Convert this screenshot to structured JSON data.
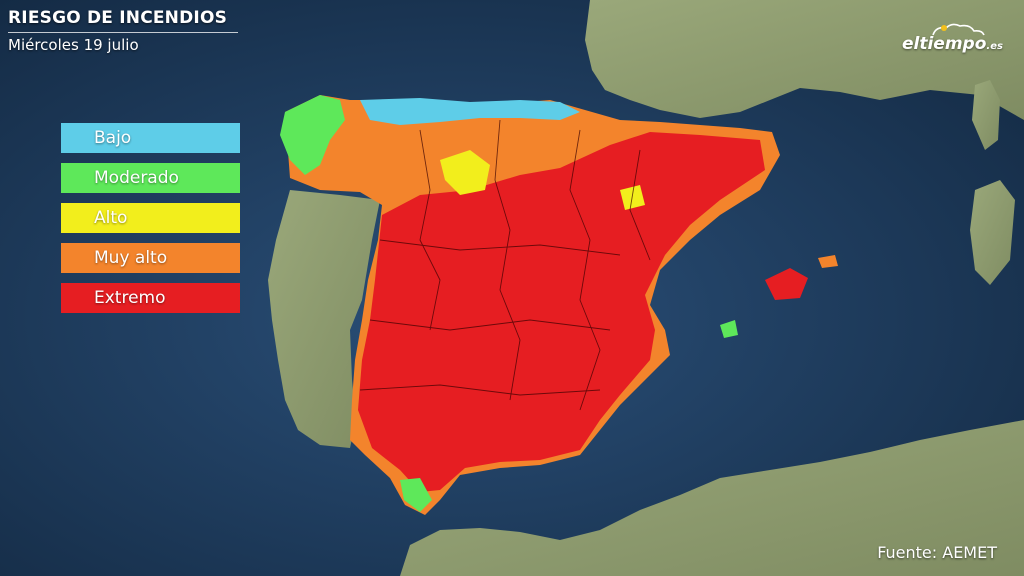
{
  "header": {
    "title": "RIESGO DE INCENDIOS",
    "subtitle": "Miércoles 19 julio"
  },
  "legend": [
    {
      "label": "Bajo",
      "color": "#5ecde8"
    },
    {
      "label": "Moderado",
      "color": "#5ee85a"
    },
    {
      "label": "Alto",
      "color": "#f2ee1c"
    },
    {
      "label": "Muy alto",
      "color": "#f3842c"
    },
    {
      "label": "Extremo",
      "color": "#e61e22"
    }
  ],
  "logo": {
    "name": "eltiempo",
    "domain": ".es"
  },
  "source": "Fuente: AEMET",
  "colors": {
    "sea": "#1d3a5c",
    "land": "#8a9a6c",
    "border": "#3a0000"
  }
}
